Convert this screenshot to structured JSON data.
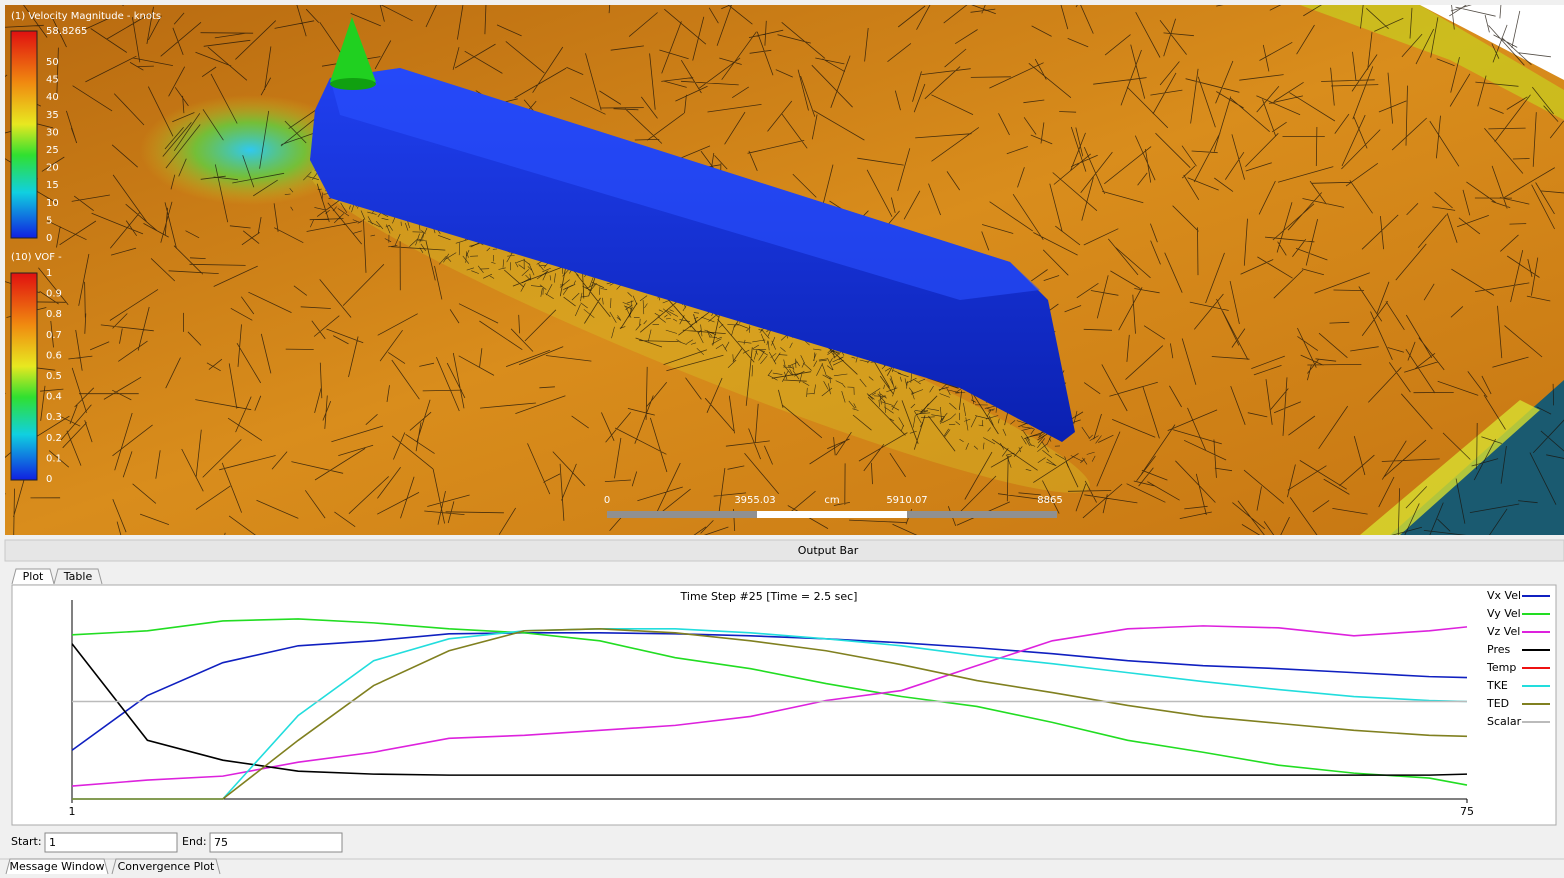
{
  "viewport": {
    "legend1": {
      "title": "(1) Velocity Magnitude - knots",
      "labels": [
        "58.8265",
        "50",
        "45",
        "40",
        "35",
        "30",
        "25",
        "20",
        "15",
        "10",
        "5",
        "0"
      ]
    },
    "legend2": {
      "title": "(10) VOF -",
      "labels": [
        "1",
        "0.9",
        "0.8",
        "0.7",
        "0.6",
        "0.5",
        "0.4",
        "0.3",
        "0.2",
        "0.1",
        "0"
      ]
    },
    "scale_bar": {
      "labels": [
        "0",
        "3955.03",
        "cm",
        "5910.07",
        "8865"
      ]
    }
  },
  "output_bar": {
    "title": "Output Bar",
    "tabs": [
      "Plot",
      "Table"
    ],
    "start_label": "Start:",
    "start_value": "1",
    "end_label": "End:",
    "end_value": "75"
  },
  "bottom_tabs": [
    "Message Window",
    "Convergence Plot"
  ],
  "chart_data": {
    "type": "line",
    "title": "Time Step #25 [Time = 2.5 sec]",
    "x": [
      1,
      5,
      9,
      13,
      17,
      21,
      25,
      29,
      33,
      37,
      41,
      45,
      49,
      53,
      57,
      61,
      65,
      69,
      73,
      75
    ],
    "xlim": [
      1,
      75
    ],
    "xticks": [
      1,
      75
    ],
    "ylim": [
      0,
      1
    ],
    "legend": "right",
    "series": [
      {
        "name": "Vx Vel",
        "color": "#1020c0",
        "values": [
          0.245,
          0.52,
          0.685,
          0.77,
          0.795,
          0.83,
          0.835,
          0.835,
          0.83,
          0.82,
          0.805,
          0.785,
          0.76,
          0.73,
          0.695,
          0.67,
          0.655,
          0.635,
          0.615,
          0.61
        ]
      },
      {
        "name": "Vy Vel",
        "color": "#22dd22",
        "values": [
          0.825,
          0.845,
          0.895,
          0.905,
          0.885,
          0.855,
          0.835,
          0.795,
          0.71,
          0.655,
          0.58,
          0.515,
          0.465,
          0.385,
          0.295,
          0.235,
          0.17,
          0.13,
          0.105,
          0.07
        ]
      },
      {
        "name": "Vz Vel",
        "color": "#dd22dd",
        "values": [
          0.065,
          0.095,
          0.115,
          0.185,
          0.235,
          0.305,
          0.32,
          0.345,
          0.37,
          0.415,
          0.495,
          0.545,
          0.67,
          0.795,
          0.855,
          0.87,
          0.86,
          0.82,
          0.845,
          0.865
        ]
      },
      {
        "name": "Pres",
        "color": "#000000",
        "values": [
          0.78,
          0.295,
          0.195,
          0.14,
          0.125,
          0.12,
          0.12,
          0.12,
          0.12,
          0.12,
          0.12,
          0.12,
          0.12,
          0.12,
          0.12,
          0.12,
          0.12,
          0.12,
          0.12,
          0.125
        ]
      },
      {
        "name": "Temp",
        "color": "#ee1111",
        "values": [
          null,
          null,
          null,
          null,
          null,
          null,
          null,
          null,
          null,
          null,
          null,
          null,
          null,
          null,
          null,
          null,
          null,
          null,
          null,
          null
        ]
      },
      {
        "name": "TKE",
        "color": "#22dddd",
        "values": [
          0,
          0,
          0,
          0.42,
          0.695,
          0.805,
          0.845,
          0.855,
          0.855,
          0.835,
          0.805,
          0.77,
          0.72,
          0.68,
          0.635,
          0.59,
          0.55,
          0.515,
          0.495,
          0.49
        ]
      },
      {
        "name": "TED",
        "color": "#808020",
        "values": [
          0,
          0,
          0,
          0.295,
          0.57,
          0.745,
          0.845,
          0.855,
          0.835,
          0.795,
          0.745,
          0.675,
          0.595,
          0.535,
          0.47,
          0.415,
          0.38,
          0.345,
          0.32,
          0.315
        ]
      },
      {
        "name": "Scalar",
        "color": "#bbbbbb",
        "values": [
          0.49,
          0.49,
          0.49,
          0.49,
          0.49,
          0.49,
          0.49,
          0.49,
          0.49,
          0.49,
          0.49,
          0.49,
          0.49,
          0.49,
          0.49,
          0.49,
          0.49,
          0.49,
          0.49,
          0.49
        ]
      }
    ]
  }
}
